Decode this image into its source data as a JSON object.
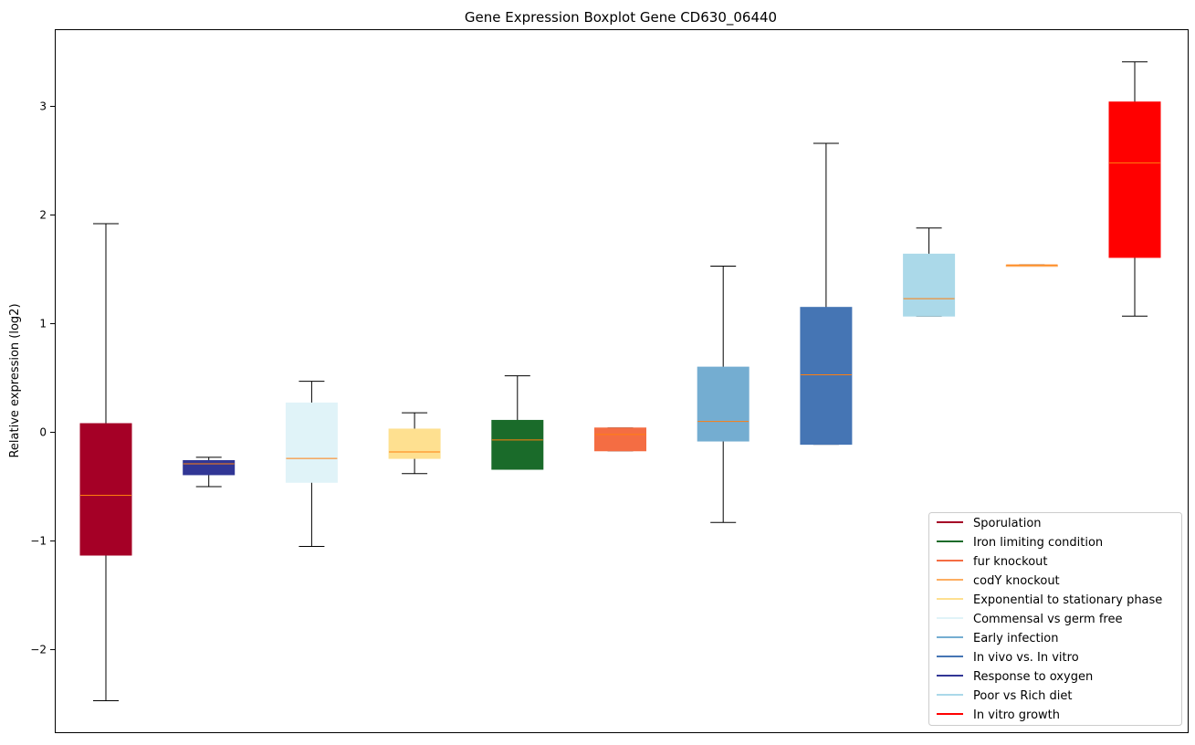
{
  "chart_data": {
    "type": "boxplot",
    "title": "Gene Expression Boxplot Gene CD630_06440",
    "xlabel": "",
    "ylabel": "Relative expression (log2)",
    "ylim": [
      -2.76,
      3.71
    ],
    "yticks": [
      -2,
      -1,
      0,
      1,
      2,
      3
    ],
    "ytick_labels": [
      "−2",
      "−1",
      "0",
      "1",
      "2",
      "3"
    ],
    "grid": false,
    "legend_position": "bottom-right",
    "median_color": "#ff7f0e",
    "boxes": [
      {
        "name": "Sporulation",
        "color": "#a50026",
        "whislo": -2.47,
        "q1": -1.13,
        "median": -0.58,
        "q3": 0.08,
        "whishi": 1.92
      },
      {
        "name": "Response to oxygen",
        "color": "#313695",
        "whislo": -0.5,
        "q1": -0.39,
        "median": -0.29,
        "q3": -0.26,
        "whishi": -0.23
      },
      {
        "name": "Commensal vs germ free",
        "color": "#e0f3f8",
        "whislo": -1.05,
        "q1": -0.46,
        "median": -0.24,
        "q3": 0.27,
        "whishi": 0.47
      },
      {
        "name": "Exponential to stationary phase",
        "color": "#fee090",
        "whislo": -0.38,
        "q1": -0.24,
        "median": -0.18,
        "q3": 0.03,
        "whishi": 0.18
      },
      {
        "name": "Iron limiting condition",
        "color": "#1a6b2a",
        "whislo": -0.34,
        "q1": -0.34,
        "median": -0.07,
        "q3": 0.11,
        "whishi": 0.52
      },
      {
        "name": "fur knockout",
        "color": "#f46d43",
        "whislo": -0.17,
        "q1": -0.17,
        "median": -0.02,
        "q3": 0.04,
        "whishi": 0.04
      },
      {
        "name": "Early infection",
        "color": "#74add1",
        "whislo": -0.83,
        "q1": -0.08,
        "median": 0.1,
        "q3": 0.6,
        "whishi": 1.53
      },
      {
        "name": "In vivo vs. In vitro",
        "color": "#4575b4",
        "whislo": -0.11,
        "q1": -0.11,
        "median": 0.53,
        "q3": 1.15,
        "whishi": 2.66
      },
      {
        "name": "Poor vs Rich diet",
        "color": "#abd9e9",
        "whislo": 1.07,
        "q1": 1.07,
        "median": 1.23,
        "q3": 1.64,
        "whishi": 1.88
      },
      {
        "name": "codY knockout",
        "color": "#fdae61",
        "whislo": 1.54,
        "q1": 1.54,
        "median": 1.54,
        "q3": 1.54,
        "whishi": 1.54
      },
      {
        "name": "In vitro growth",
        "color": "#ff0000",
        "whislo": 1.07,
        "q1": 1.61,
        "median": 2.48,
        "q3": 3.04,
        "whishi": 3.41
      }
    ],
    "legend": [
      {
        "label": "Sporulation",
        "color": "#a50026"
      },
      {
        "label": "Iron limiting condition",
        "color": "#1a6b2a"
      },
      {
        "label": "fur knockout",
        "color": "#f46d43"
      },
      {
        "label": "codY knockout",
        "color": "#fdae61"
      },
      {
        "label": "Exponential to stationary phase",
        "color": "#fee090"
      },
      {
        "label": "Commensal vs germ free",
        "color": "#e0f3f8"
      },
      {
        "label": "Early infection",
        "color": "#74add1"
      },
      {
        "label": "In vivo vs. In vitro",
        "color": "#4575b4"
      },
      {
        "label": "Response to oxygen",
        "color": "#313695"
      },
      {
        "label": "Poor vs Rich diet",
        "color": "#abd9e9"
      },
      {
        "label": "In vitro growth",
        "color": "#ff0000"
      }
    ]
  }
}
